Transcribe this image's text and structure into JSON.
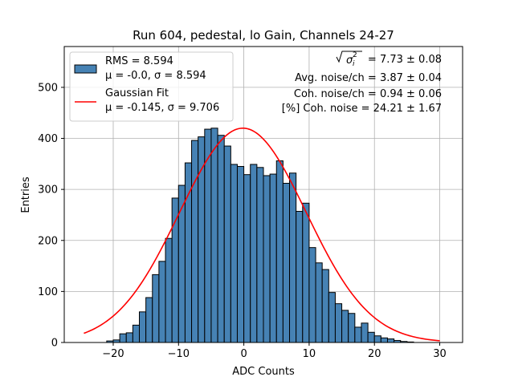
{
  "chart_data": {
    "type": "histogram",
    "title": "Run 604, pedestal, lo Gain, Channels 24-27",
    "xlabel": "ADC Counts",
    "ylabel": "Entries",
    "xlim": [
      -27.5,
      33.5
    ],
    "ylim": [
      0,
      580
    ],
    "xticks": [
      -20,
      -10,
      0,
      10,
      20,
      30
    ],
    "xtick_labels": [
      "−20",
      "−10",
      "0",
      "10",
      "20",
      "30"
    ],
    "yticks": [
      0,
      100,
      200,
      300,
      400,
      500
    ],
    "grid": true,
    "bar_color": "#4682b4",
    "fit_color": "#ff0000",
    "bin_start": -24,
    "bin_width": 1,
    "counts": [
      0,
      0,
      0,
      3,
      5,
      17,
      19,
      34,
      60,
      88,
      133,
      159,
      204,
      283,
      308,
      352,
      396,
      403,
      418,
      420,
      406,
      385,
      349,
      345,
      329,
      349,
      343,
      327,
      330,
      356,
      312,
      332,
      257,
      273,
      186,
      156,
      143,
      98,
      76,
      63,
      57,
      30,
      38,
      20,
      13,
      9,
      7,
      4,
      2,
      1
    ],
    "fit": {
      "mu": -0.145,
      "sigma": 9.706,
      "amplitude": 420,
      "x_range": [
        -24.5,
        30
      ]
    },
    "legend": {
      "placement": "top-left",
      "entries": [
        {
          "kind": "patch",
          "line1": "RMS = 8.594",
          "line2": "μ = -0.0, σ = 8.594"
        },
        {
          "kind": "line",
          "line1": "Gaussian Fit",
          "line2": "μ = -0.145, σ = 9.706"
        }
      ]
    },
    "annotations": {
      "total_noise_value": "= 7.73 ± 0.08",
      "avg_noise": "Avg. noise/ch = 3.87 ± 0.04",
      "coh_noise": "Coh. noise/ch = 0.94 ± 0.06",
      "coh_percent": "[%] Coh. noise = 24.21 ± 1.67"
    }
  }
}
